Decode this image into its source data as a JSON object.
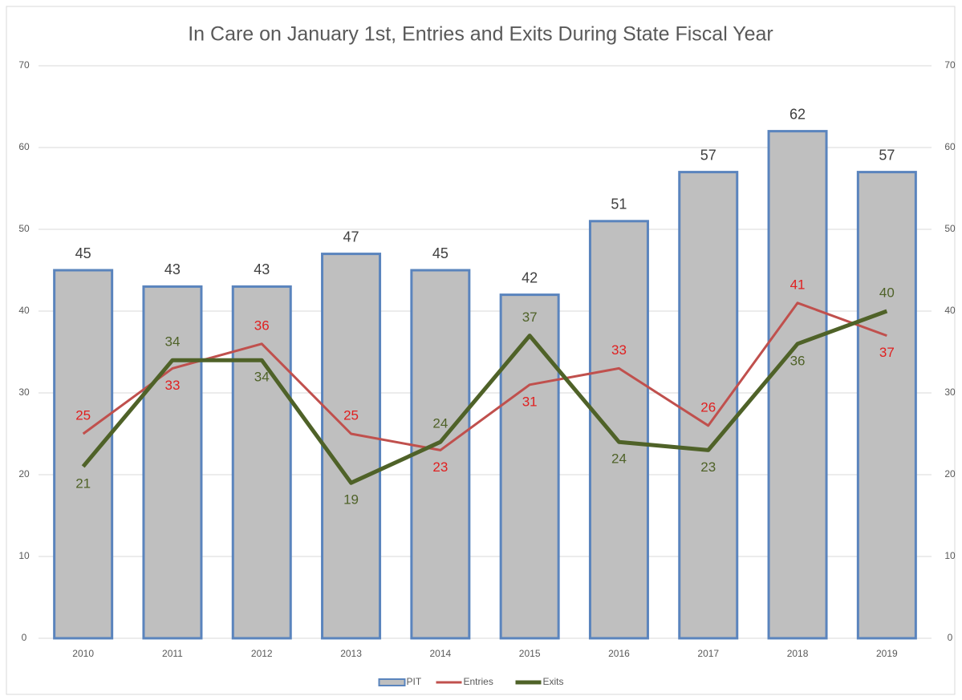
{
  "chart_data": {
    "type": "bar_line",
    "title": "In Care on January 1st, Entries and Exits During State Fiscal Year",
    "categories": [
      "2010",
      "2011",
      "2012",
      "2013",
      "2014",
      "2015",
      "2016",
      "2017",
      "2018",
      "2019"
    ],
    "series": [
      {
        "name": "PIT",
        "type": "bar",
        "color": "#bfbfbf",
        "edge_color": "#5a84bd",
        "values": [
          45,
          43,
          43,
          47,
          45,
          42,
          51,
          57,
          62,
          57
        ]
      },
      {
        "name": "Entries",
        "type": "line",
        "axis": "y2",
        "color": "#c0504d",
        "values": [
          25,
          33,
          36,
          25,
          23,
          31,
          33,
          26,
          41,
          37
        ]
      },
      {
        "name": "Exits",
        "type": "line",
        "axis": "y2",
        "color": "#4f6228",
        "values": [
          21,
          34,
          34,
          19,
          24,
          37,
          24,
          23,
          36,
          40
        ]
      }
    ],
    "ylim": [
      0,
      70
    ],
    "yticks": [
      0,
      10,
      20,
      30,
      40,
      50,
      60,
      70
    ],
    "y2lim": [
      0,
      70
    ],
    "y2ticks": [
      0,
      10,
      20,
      30,
      40,
      50,
      60,
      70
    ],
    "grid": true,
    "legend": "bottom"
  }
}
